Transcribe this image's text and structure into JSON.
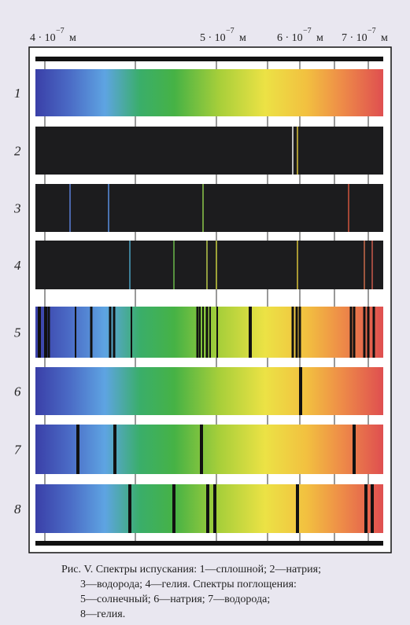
{
  "axis": {
    "ticks": [
      {
        "base": "4 · 10",
        "exponent": "−7",
        "unit": "м"
      },
      {
        "base": "5 · 10",
        "exponent": "−7",
        "unit": "м"
      },
      {
        "base": "6 · 10",
        "exponent": "−7",
        "unit": "м"
      },
      {
        "base": "7 · 10",
        "exponent": "−7",
        "unit": "м"
      }
    ]
  },
  "rows": [
    "1",
    "2",
    "3",
    "4",
    "5",
    "6",
    "7",
    "8"
  ],
  "caption": {
    "lines": [
      "Рис. V. Спектры испускания: 1—сплошной; 2—натрия;",
      "3—водорода; 4—гелия. Спектры поглощения:",
      "5—солнечный; 6—натрия; 7—водорода;",
      "8—гелия."
    ]
  }
}
